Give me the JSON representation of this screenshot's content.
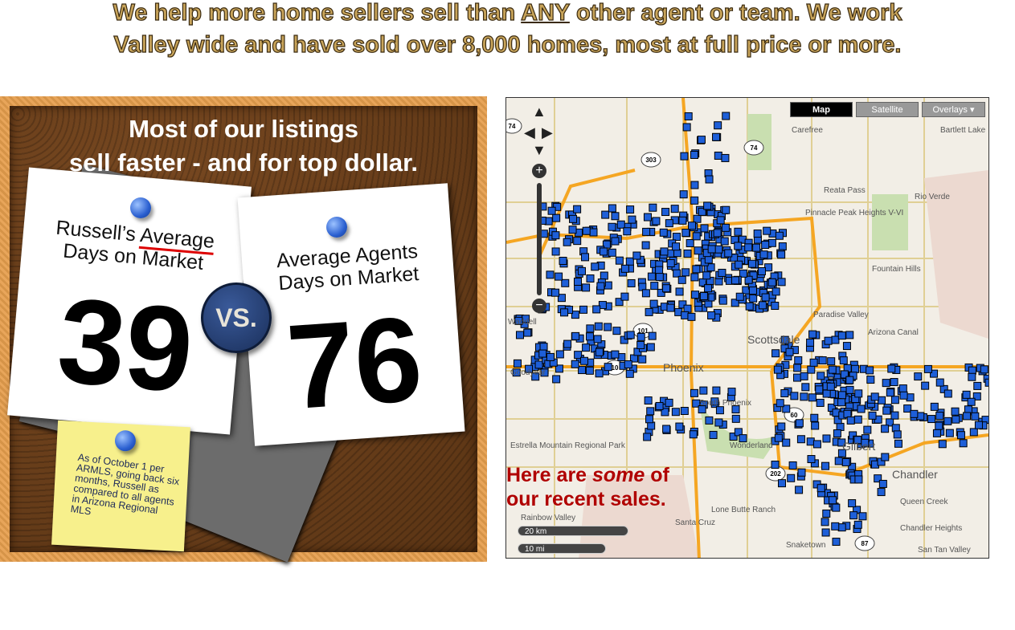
{
  "headline": {
    "line1_pre": "We help more home sellers sell than ",
    "line1_emph": "ANY",
    "line1_post": " other agent or team.  We work",
    "line2": "Valley wide and have sold over 8,000 homes, most at full price or more."
  },
  "board": {
    "title_line1": "Most of our listings",
    "title_line2": "sell faster - and for top dollar.",
    "russell": {
      "label_pre": "Russell’s ",
      "label_emph": "Average",
      "label_line2": "Days on Market",
      "value": "39"
    },
    "vs": "VS.",
    "agents": {
      "label_line1": "Average Agents",
      "label_line2": "Days on Market",
      "value": "76"
    },
    "note": "As of October 1 per ARMLS, going back six months, Russell as compared to all agents in Arizona Regional MLS"
  },
  "map": {
    "buttons": [
      "Map",
      "Satellite",
      "Overlays ▾"
    ],
    "active": "Map",
    "overlay_pre": "Here are ",
    "overlay_emph": "some",
    "overlay_post": " of",
    "overlay_line2": "our recent sales.",
    "scale_km": "20 km",
    "scale_mi": "10 mi",
    "places": [
      "Carefree",
      "Bartlett Lake",
      "Reata Pass",
      "Rio Verde",
      "Pinnacle Peak Heights V-VI",
      "Fountain Hills",
      "Paradise Valley",
      "Arizona Canal",
      "Scottsdale",
      "Phoenix",
      "South Phoenix",
      "Waddell",
      "Goodyear",
      "Estrella Mountain Regional Park",
      "Wonderland",
      "Gilbert",
      "Chandler",
      "Queen Creek",
      "Chandler Heights",
      "Rainbow Valley",
      "Lone Butte Ranch",
      "Santa Cruz",
      "Snaketown",
      "San Tan Valley"
    ],
    "shields": [
      "74",
      "303",
      "74",
      "101",
      "10",
      "60",
      "202",
      "87",
      "51"
    ],
    "marker_color": "#1e5fd8"
  }
}
